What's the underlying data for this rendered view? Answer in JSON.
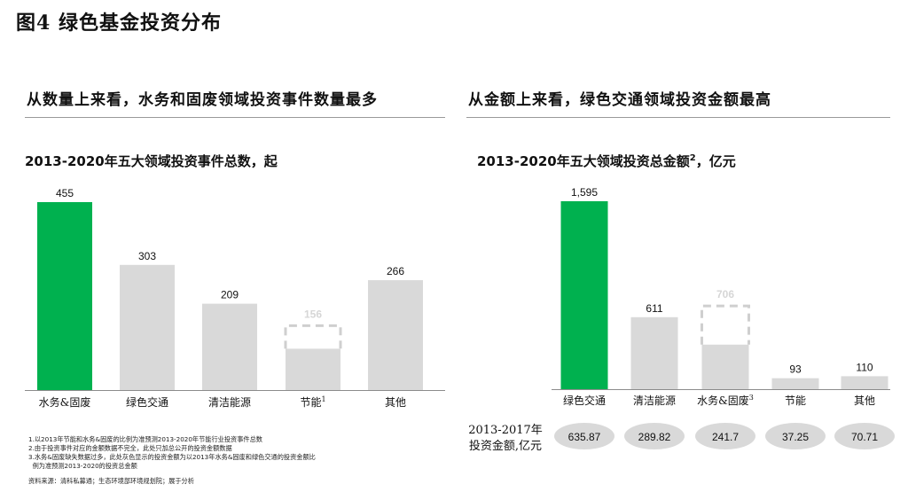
{
  "figure_title": "图4 绿色基金投资分布",
  "left": {
    "subtitle": "从数量上来看，水务和固废领域投资事件数量最多",
    "chart_title": "2013-2020年五大领域投资事件总数，起"
  },
  "right": {
    "subtitle": "从金额上来看，绿色交通领域投资金额最高",
    "chart_title": "2013-2020年五大领域投资总金额",
    "chart_title_sup": "2",
    "chart_title_tail": "，亿元",
    "row_label_line1": "2013-2017年",
    "row_label_line2": "投资金额,亿元"
  },
  "chart_data": [
    {
      "type": "bar",
      "title": "2013-2020年五大领域投资事件总数，起",
      "categories": [
        "水务&固废",
        "绿色交通",
        "清洁能源",
        "节能",
        "其他"
      ],
      "category_sups": [
        "",
        "",
        "",
        "1",
        ""
      ],
      "values": [
        455,
        303,
        209,
        100,
        266
      ],
      "value_labels": [
        "455",
        "303",
        "209",
        "",
        "266"
      ],
      "projected": [
        null,
        null,
        null,
        156,
        null
      ],
      "projected_labels": [
        "",
        "",
        "",
        "156",
        ""
      ],
      "ylim": [
        0,
        455
      ],
      "colors": [
        "#00b14f",
        "#d9d9d9",
        "#d9d9d9",
        "#d9d9d9",
        "#d9d9d9"
      ]
    },
    {
      "type": "bar",
      "title": "2013-2020年五大领域投资总金额2，亿元",
      "categories": [
        "绿色交通",
        "清洁能源",
        "水务&固废",
        "节能",
        "其他"
      ],
      "category_sups": [
        "",
        "",
        "3",
        "",
        ""
      ],
      "values": [
        1595,
        611,
        378,
        93,
        110
      ],
      "value_labels": [
        "1,595",
        "611",
        "",
        "93",
        "110"
      ],
      "projected": [
        null,
        null,
        706,
        null,
        null
      ],
      "projected_labels": [
        "",
        "",
        "706",
        "",
        ""
      ],
      "ylim": [
        0,
        1595
      ],
      "colors": [
        "#00b14f",
        "#d9d9d9",
        "#d9d9d9",
        "#d9d9d9",
        "#d9d9d9"
      ],
      "row_values": [
        "635.87",
        "289.82",
        "241.7",
        "37.25",
        "70.71"
      ]
    }
  ],
  "notes": [
    "1.以2013年节能和水务&固废的比例为准预测2013-2020年节能行业投资事件总数",
    "2.由于投资事件对应的金额数据不完全，此处只加总公开的投资金额数据",
    "3.水务&固废缺失数据过多，此处灰色显示的投资金额为以2013年水务&固废和绿色交通的投资金额比",
    "  例为准预测2013-2020的投资总金额"
  ],
  "source": "资料来源：清科私募通；生态环境部环境规划院；展于分析"
}
